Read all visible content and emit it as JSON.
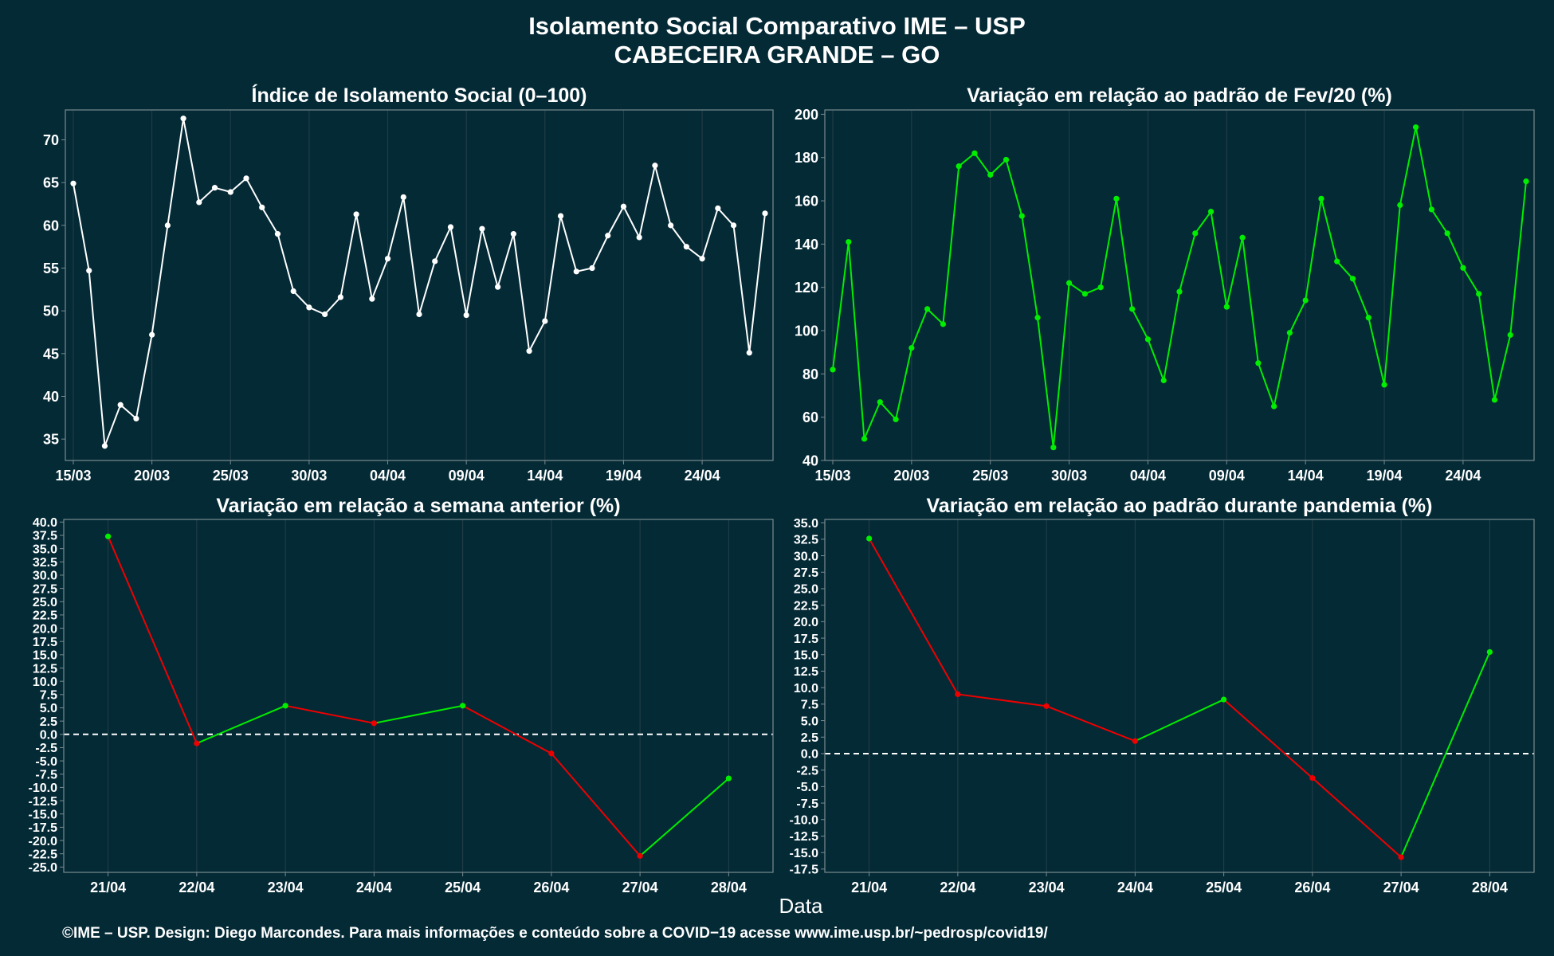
{
  "title_line1": "Isolamento Social Comparativo IME – USP",
  "title_line2": "CABECEIRA GRANDE – GO",
  "footer": "©IME – USP. Design: Diego Marcondes. Para mais informações e conteúdo sobre a COVID−19 acesse www.ime.usp.br/~pedrosp/covid19/",
  "xlabel_shared": "Data",
  "colors": {
    "background": "#042a36",
    "white": "#ffffff",
    "green": "#00ee00",
    "red": "#ee0000",
    "grid": "#25404a",
    "frame": "#7a8a90"
  },
  "chart_data": [
    {
      "type": "line",
      "title": "Índice de Isolamento Social (0–100)",
      "x_start": "15/03",
      "x_ticks": [
        "15/03",
        "20/03",
        "25/03",
        "30/03",
        "04/04",
        "09/04",
        "14/04",
        "19/04",
        "24/04"
      ],
      "ylim": [
        32.5,
        73.5
      ],
      "y_ticks": [
        35,
        40,
        45,
        50,
        55,
        60,
        65,
        70
      ],
      "line_color": "white",
      "values": [
        64.9,
        54.7,
        34.2,
        39.0,
        37.4,
        47.2,
        60.0,
        72.5,
        62.7,
        64.4,
        63.9,
        65.5,
        62.1,
        59.0,
        52.3,
        50.4,
        49.6,
        51.6,
        61.3,
        51.4,
        56.1,
        63.3,
        49.6,
        55.8,
        59.8,
        49.5,
        59.6,
        52.8,
        59.0,
        45.3,
        48.8,
        61.1,
        54.6,
        55.0,
        58.8,
        62.2,
        58.6,
        67.0,
        60.0,
        57.5,
        56.1,
        62.0,
        60.0,
        45.1,
        61.4
      ]
    },
    {
      "type": "line",
      "title": "Variação em relação ao padrão de Fev/20 (%)",
      "x_start": "15/03",
      "x_ticks": [
        "15/03",
        "20/03",
        "25/03",
        "30/03",
        "04/04",
        "09/04",
        "14/04",
        "19/04",
        "24/04"
      ],
      "ylim": [
        40,
        202
      ],
      "y_ticks": [
        40,
        60,
        80,
        100,
        120,
        140,
        160,
        180,
        200
      ],
      "line_color": "green",
      "values": [
        82,
        141,
        50,
        67,
        59,
        92,
        110,
        103,
        176,
        182,
        172,
        179,
        153,
        106,
        46,
        122,
        117,
        120,
        161,
        110,
        96,
        77,
        118,
        145,
        155,
        111,
        143,
        85,
        65,
        99,
        114,
        161,
        132,
        124,
        106,
        75,
        158,
        194,
        156,
        145,
        129,
        117,
        68,
        98,
        169
      ]
    },
    {
      "type": "line",
      "title": "Variação em relação a semana anterior (%)",
      "categories": [
        "21/04",
        "22/04",
        "23/04",
        "24/04",
        "25/04",
        "26/04",
        "27/04",
        "28/04"
      ],
      "ylim": [
        -26,
        40.5
      ],
      "y_ticks": [
        40.0,
        37.5,
        35.0,
        32.5,
        30.0,
        27.5,
        25.0,
        22.5,
        20.0,
        17.5,
        15.0,
        12.5,
        10.0,
        7.5,
        5.0,
        2.5,
        0.0,
        -2.5,
        -5.0,
        -7.5,
        -10.0,
        -12.5,
        -15.0,
        -17.5,
        -20.0,
        -22.5,
        -25.0
      ],
      "reference_line": 0,
      "segment_coloring": "green when increasing, red when decreasing",
      "values": [
        37.3,
        -1.7,
        5.4,
        2.1,
        5.4,
        -3.6,
        -22.9,
        -8.3
      ]
    },
    {
      "type": "line",
      "title": "Variação em relação ao padrão durante pandemia (%)",
      "categories": [
        "21/04",
        "22/04",
        "23/04",
        "24/04",
        "25/04",
        "26/04",
        "27/04",
        "28/04"
      ],
      "ylim": [
        -18,
        35.5
      ],
      "y_ticks": [
        35.0,
        32.5,
        30.0,
        27.5,
        25.0,
        22.5,
        20.0,
        17.5,
        15.0,
        12.5,
        10.0,
        7.5,
        5.0,
        2.5,
        0.0,
        -2.5,
        -5.0,
        -7.5,
        -10.0,
        -12.5,
        -15.0,
        -17.5
      ],
      "reference_line": 0,
      "segment_coloring": "green when increasing, red when decreasing",
      "values": [
        32.6,
        9.0,
        7.2,
        1.9,
        8.2,
        -3.7,
        -15.7,
        15.4
      ]
    }
  ]
}
